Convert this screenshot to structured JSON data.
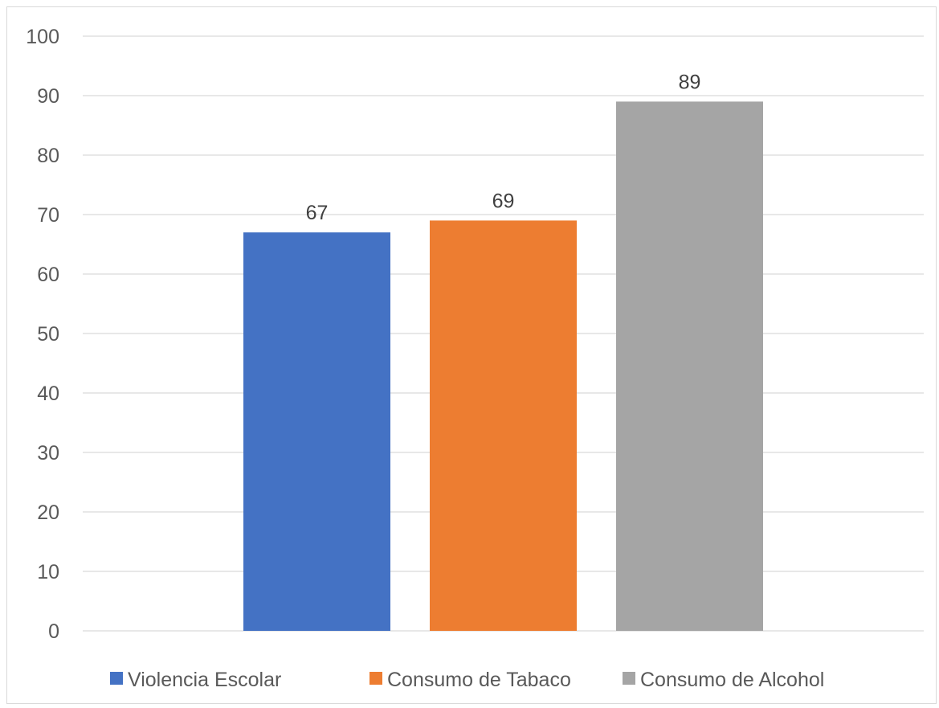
{
  "chart_data": {
    "type": "bar",
    "categories": [
      "Violencia Escolar",
      "Consumo de Tabaco",
      "Consumo de Alcohol"
    ],
    "values": [
      67,
      69,
      89
    ],
    "colors": [
      "#4472c4",
      "#ed7d31",
      "#a5a5a5"
    ],
    "data_labels": [
      "67",
      "69",
      "89"
    ],
    "ylim": [
      0,
      100
    ],
    "yticks": [
      0,
      10,
      20,
      30,
      40,
      50,
      60,
      70,
      80,
      90,
      100
    ],
    "ytick_labels": [
      "0",
      "10",
      "20",
      "30",
      "40",
      "50",
      "60",
      "70",
      "80",
      "90",
      "100"
    ],
    "grid": true,
    "legend": {
      "placement": "bottom",
      "entries": [
        "Violencia Escolar",
        "Consumo de Tabaco",
        "Consumo de Alcohol"
      ]
    },
    "title": "",
    "xlabel": "",
    "ylabel": ""
  },
  "colors": {
    "gridline": "#d9d9d9",
    "axis_text": "#595959",
    "data_label_text": "#404040"
  }
}
